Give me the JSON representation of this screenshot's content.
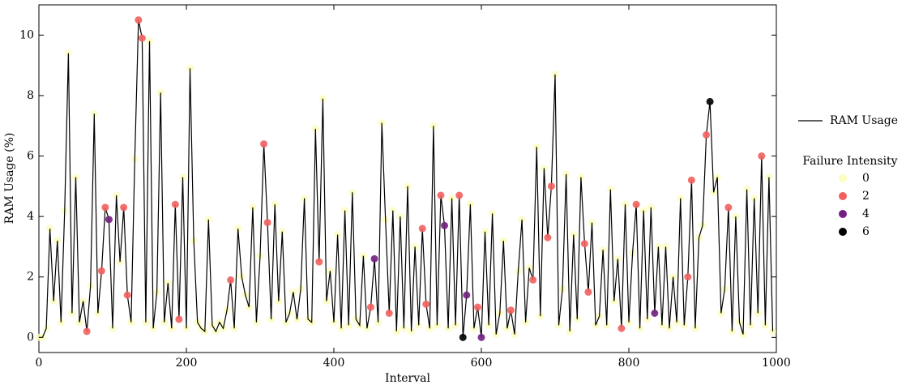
{
  "chart_data": {
    "type": "line",
    "x_label": "Interval",
    "y_label": "RAM Usage (%)",
    "xlim": [
      0,
      1000
    ],
    "ylim": [
      -0.5,
      11
    ],
    "xticks": [
      0,
      200,
      400,
      600,
      800,
      1000
    ],
    "yticks": [
      0,
      2,
      4,
      6,
      8,
      10
    ],
    "x": [
      0,
      5,
      10,
      15,
      20,
      25,
      30,
      35,
      40,
      45,
      50,
      55,
      60,
      65,
      70,
      75,
      80,
      85,
      90,
      95,
      100,
      105,
      110,
      115,
      120,
      125,
      130,
      135,
      140,
      145,
      150,
      155,
      160,
      165,
      170,
      175,
      180,
      185,
      190,
      195,
      200,
      205,
      210,
      215,
      220,
      225,
      230,
      235,
      240,
      245,
      250,
      255,
      260,
      265,
      270,
      275,
      280,
      285,
      290,
      295,
      300,
      305,
      310,
      315,
      320,
      325,
      330,
      335,
      340,
      345,
      350,
      355,
      360,
      365,
      370,
      375,
      380,
      385,
      390,
      395,
      400,
      405,
      410,
      415,
      420,
      425,
      430,
      435,
      440,
      445,
      450,
      455,
      460,
      465,
      470,
      475,
      480,
      485,
      490,
      495,
      500,
      505,
      510,
      515,
      520,
      525,
      530,
      535,
      540,
      545,
      550,
      555,
      560,
      565,
      570,
      575,
      580,
      585,
      590,
      595,
      600,
      605,
      610,
      615,
      620,
      625,
      630,
      635,
      640,
      645,
      650,
      655,
      660,
      665,
      670,
      675,
      680,
      685,
      690,
      695,
      700,
      705,
      710,
      715,
      720,
      725,
      730,
      735,
      740,
      745,
      750,
      755,
      760,
      765,
      770,
      775,
      780,
      785,
      790,
      795,
      800,
      805,
      810,
      815,
      820,
      825,
      830,
      835,
      840,
      845,
      850,
      855,
      860,
      865,
      870,
      875,
      880,
      885,
      890,
      895,
      900,
      905,
      910,
      915,
      920,
      925,
      930,
      935,
      940,
      945,
      950,
      955,
      960,
      965,
      970,
      975,
      980,
      985,
      990,
      995
    ],
    "series": [
      {
        "name": "RAM Usage",
        "color": "#000000",
        "values": [
          0,
          0,
          0.3,
          3.6,
          1.2,
          3.2,
          0.5,
          4.2,
          9.4,
          0.8,
          5.3,
          0.5,
          1.2,
          0.2,
          1.7,
          7.4,
          0.8,
          2.2,
          4.3,
          3.9,
          0.3,
          4.7,
          2.5,
          4.3,
          1.4,
          0.5,
          5.9,
          10.5,
          9.9,
          0.5,
          9.8,
          0.3,
          1.5,
          8.1,
          0.5,
          1.8,
          0.3,
          4.4,
          0.6,
          5.3,
          0.3,
          8.9,
          3.2,
          0.5,
          0.3,
          0.2,
          3.9,
          0.4,
          0.2,
          0.5,
          0.3,
          0.9,
          1.9,
          0.3,
          3.6,
          2.0,
          1.4,
          1.0,
          4.3,
          0.5,
          2.7,
          6.4,
          3.8,
          0.6,
          4.4,
          1.2,
          3.5,
          0.5,
          0.8,
          1.5,
          0.6,
          1.6,
          4.6,
          0.6,
          0.5,
          6.9,
          2.5,
          7.9,
          1.2,
          2.2,
          0.5,
          3.4,
          0.3,
          4.2,
          0.4,
          4.8,
          0.6,
          0.4,
          2.7,
          0.3,
          1.0,
          2.6,
          0.5,
          7.1,
          3.9,
          0.8,
          4.2,
          0.2,
          4.0,
          0.3,
          5.0,
          0.2,
          3.0,
          0.4,
          3.6,
          1.1,
          0.3,
          7.0,
          0.4,
          4.7,
          3.7,
          0.3,
          4.6,
          0.4,
          4.7,
          0.0,
          1.4,
          4.4,
          0.3,
          1.0,
          0.0,
          3.5,
          0.4,
          4.1,
          0.1,
          0.8,
          3.2,
          0.3,
          0.9,
          0.1,
          2.2,
          3.9,
          0.5,
          2.3,
          1.9,
          6.3,
          0.7,
          5.6,
          3.3,
          5.0,
          8.7,
          0.4,
          1.6,
          5.4,
          0.2,
          3.4,
          0.6,
          5.3,
          3.1,
          1.5,
          3.8,
          0.4,
          0.7,
          2.9,
          0.4,
          4.9,
          1.2,
          2.6,
          0.3,
          4.4,
          0.5,
          2.8,
          4.4,
          0.3,
          4.2,
          0.6,
          4.3,
          0.8,
          3.0,
          0.4,
          3.0,
          0.3,
          2.0,
          0.5,
          4.6,
          0.4,
          2.0,
          5.2,
          0.3,
          3.3,
          3.7,
          6.7,
          7.8,
          4.8,
          5.3,
          0.8,
          1.6,
          4.3,
          0.2,
          4.0,
          0.5,
          0.1,
          4.9,
          0.4,
          4.6,
          0.8,
          6.0,
          0.4,
          5.3,
          0.2
        ]
      }
    ],
    "intensity": [
      0,
      0,
      0,
      0,
      0,
      0,
      0,
      0,
      0,
      0,
      0,
      0,
      0,
      2,
      0,
      0,
      0,
      2,
      2,
      4,
      0,
      0,
      0,
      2,
      2,
      0,
      0,
      2,
      2,
      0,
      0,
      0,
      0,
      0,
      0,
      0,
      0,
      2,
      2,
      0,
      0,
      0,
      0,
      0,
      0,
      0,
      0,
      0,
      0,
      0,
      0,
      0,
      2,
      0,
      0,
      0,
      0,
      0,
      0,
      0,
      0,
      2,
      2,
      0,
      0,
      0,
      0,
      0,
      0,
      0,
      0,
      0,
      0,
      0,
      0,
      0,
      2,
      0,
      0,
      0,
      0,
      0,
      0,
      0,
      0,
      0,
      0,
      0,
      0,
      0,
      2,
      4,
      0,
      0,
      0,
      2,
      0,
      0,
      0,
      0,
      0,
      0,
      0,
      0,
      2,
      2,
      0,
      0,
      0,
      2,
      4,
      0,
      0,
      0,
      2,
      6,
      4,
      0,
      0,
      2,
      4,
      0,
      0,
      0,
      0,
      0,
      0,
      0,
      2,
      0,
      0,
      0,
      0,
      0,
      2,
      0,
      0,
      0,
      2,
      2,
      0,
      0,
      0,
      0,
      0,
      0,
      0,
      0,
      2,
      2,
      0,
      0,
      0,
      0,
      0,
      0,
      0,
      0,
      2,
      0,
      0,
      0,
      2,
      0,
      0,
      0,
      0,
      4,
      0,
      0,
      0,
      0,
      0,
      0,
      0,
      0,
      2,
      2,
      0,
      0,
      0,
      2,
      6,
      0,
      0,
      0,
      0,
      2,
      0,
      0,
      0,
      0,
      0,
      0,
      0,
      0,
      2,
      0,
      0,
      0
    ],
    "legend_title": "Failure Intensity",
    "intensity_levels": [
      0,
      2,
      4,
      6
    ],
    "intensity_colors": [
      "#fcfdbf",
      "#f1605d",
      "#721f81",
      "#000004"
    ]
  }
}
